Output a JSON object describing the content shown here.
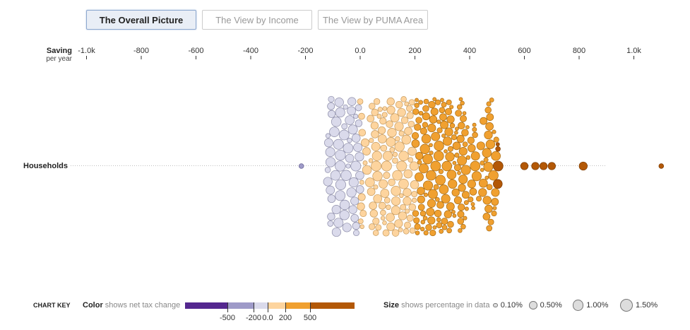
{
  "tabs": [
    {
      "label": "The Overall Picture",
      "active": true
    },
    {
      "label": "The View by Income",
      "active": false
    },
    {
      "label": "The View by PUMA Area",
      "active": false
    }
  ],
  "chart_data": {
    "type": "scatter",
    "subtype": "beeswarm",
    "xaxis_title": "Saving",
    "xaxis_subtitle": "per year",
    "xticks": [
      -1000,
      -800,
      -600,
      -400,
      -200,
      0,
      200,
      400,
      600,
      800,
      1000
    ],
    "xtick_labels": [
      "-1.0k",
      "-800",
      "-600",
      "-400",
      "-200",
      "0.0",
      "200",
      "400",
      "600",
      "800",
      "1.0k"
    ],
    "xlim": [
      -1000,
      1000
    ],
    "row_label": "Households",
    "grid": false,
    "color_scale": {
      "breaks": [
        -500,
        -200,
        0,
        200,
        500
      ],
      "break_labels": [
        "-500",
        "-200",
        "0.0",
        "200",
        "500"
      ],
      "colors": [
        "#54278f",
        "#9e9ac8",
        "#dadaeb",
        "#fdd49e",
        "#f0a030",
        "#b35806"
      ]
    },
    "size_scale": {
      "values": [
        0.1,
        0.5,
        1.0,
        1.5
      ],
      "labels": [
        "0.10%",
        "0.50%",
        "1.00%",
        "1.50%"
      ]
    },
    "distribution_summary": {
      "min": -215,
      "max": 1100,
      "dense_range": [
        -120,
        520
      ],
      "outliers": [
        [
          -215,
          0.1
        ],
        [
          600,
          0.4
        ],
        [
          640,
          0.4
        ],
        [
          670,
          0.4
        ],
        [
          700,
          0.4
        ],
        [
          815,
          0.5
        ],
        [
          1100,
          0.1
        ]
      ]
    }
  },
  "key": {
    "title": "CHART KEY",
    "color_label_bold": "Color",
    "color_label_rest": " shows net tax change",
    "size_label_bold": "Size",
    "size_label_rest": " shows percentage in data"
  }
}
